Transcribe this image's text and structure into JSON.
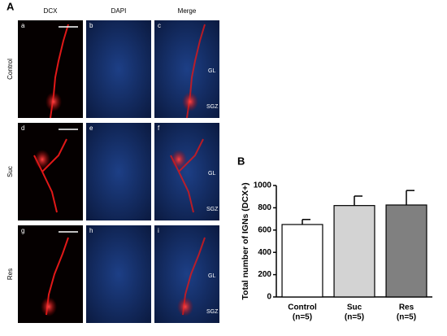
{
  "figure": {
    "panel_a_label": "A",
    "panel_b_label": "B",
    "columns": [
      "DCX",
      "DAPI",
      "Merge"
    ],
    "rows": [
      "Control",
      "Suc",
      "Res"
    ],
    "panel_letters": [
      "a",
      "b",
      "c",
      "d",
      "e",
      "f",
      "g",
      "h",
      "i"
    ],
    "region_labels": [
      "GL",
      "SGZ"
    ]
  },
  "chart_data": {
    "type": "bar",
    "ylabel": "Total number of IGNs (DCX+)",
    "categories": [
      "Control",
      "Suc",
      "Res"
    ],
    "category_sublabels": [
      "(n=5)",
      "(n=5)",
      "(n=5)"
    ],
    "values": [
      650,
      820,
      825
    ],
    "errors": [
      45,
      85,
      130
    ],
    "colors": [
      "#ffffff",
      "#d3d3d3",
      "#808080"
    ],
    "ylim": [
      0,
      1000
    ],
    "yticks": [
      0,
      200,
      400,
      600,
      800,
      1000
    ]
  }
}
